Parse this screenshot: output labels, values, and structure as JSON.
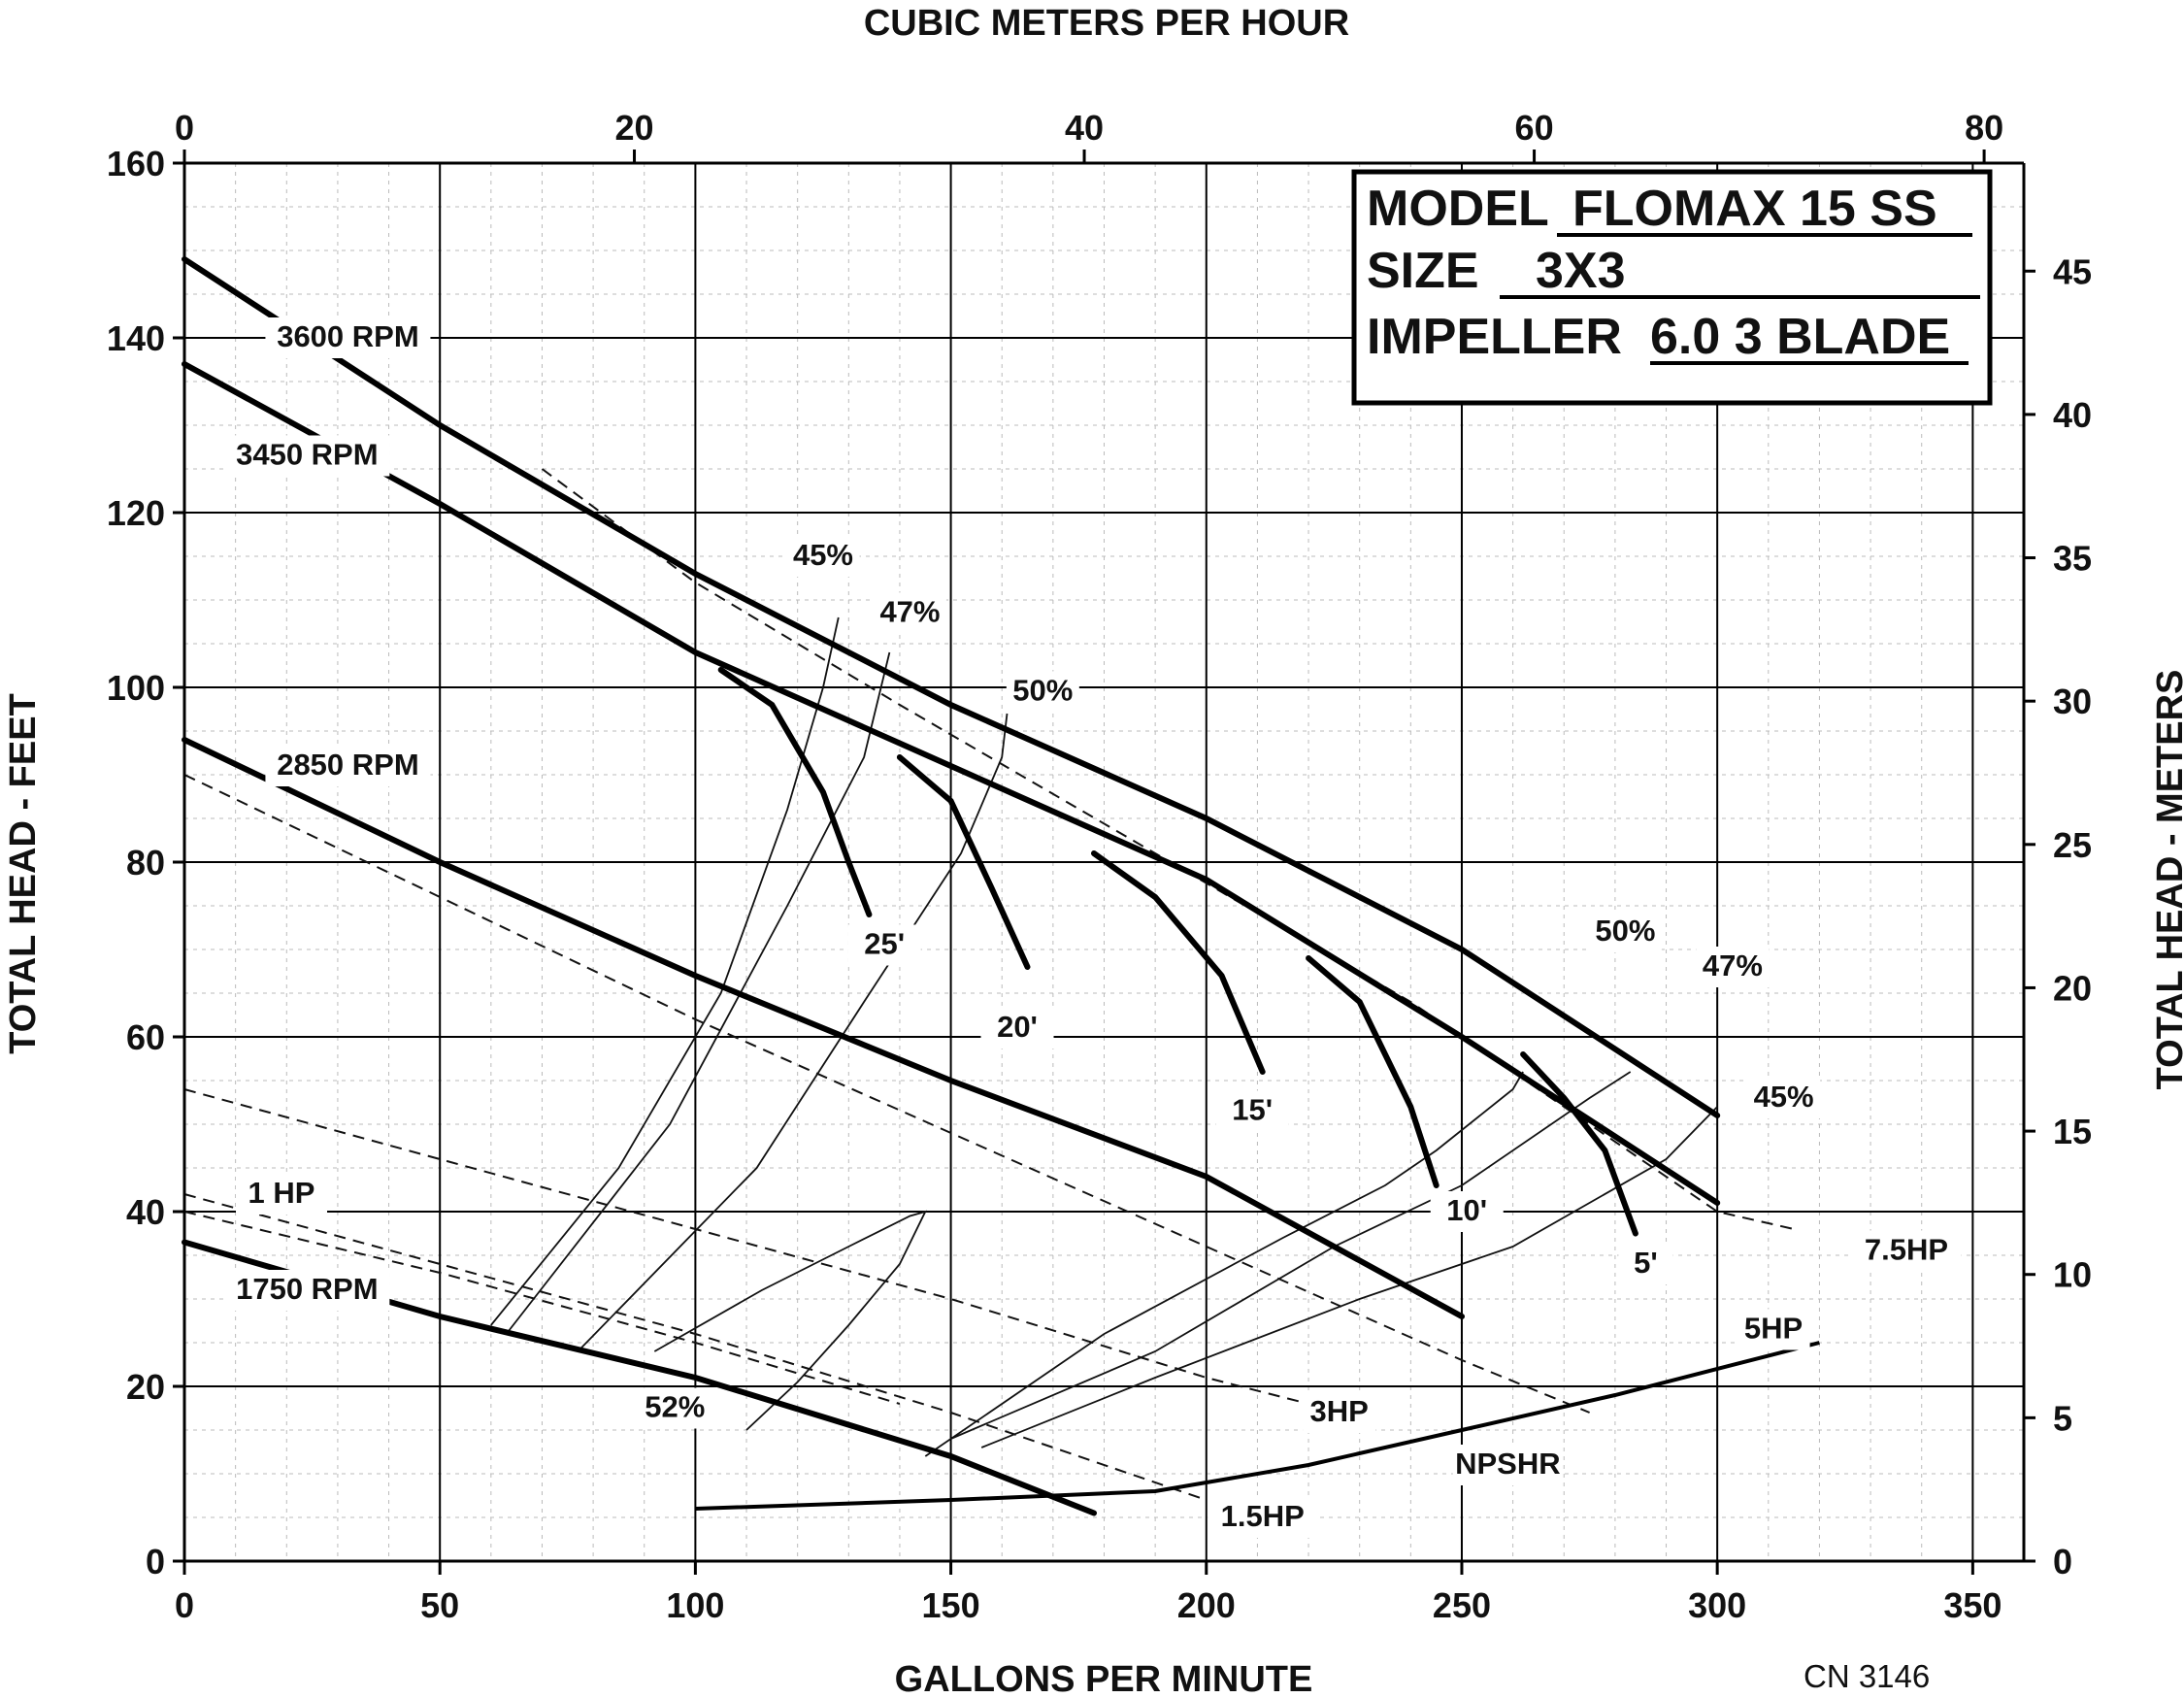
{
  "chart_data": {
    "type": "line",
    "title_box": {
      "line1_label": "MODEL",
      "line1_value": "FLOMAX 15 SS",
      "line2_label": "SIZE",
      "line2_value": "3X3",
      "line3_label": "IMPELLER",
      "line3_value": "6.0 3 BLADE"
    },
    "xlabel": "GALLONS PER MINUTE",
    "x2label": "CUBIC METERS PER HOUR",
    "ylabel": "TOTAL HEAD - FEET",
    "y2label": "TOTAL HEAD - METERS",
    "xlim": [
      0,
      360
    ],
    "ylim": [
      0,
      160
    ],
    "x_ticks": [
      "0",
      "50",
      "100",
      "150",
      "200",
      "250",
      "300",
      "350"
    ],
    "y_ticks": [
      "0",
      "20",
      "40",
      "60",
      "80",
      "100",
      "120",
      "140",
      "160"
    ],
    "x2_ticks": [
      "0",
      "20",
      "40",
      "60",
      "80"
    ],
    "y2_ticks": [
      "0",
      "5",
      "10",
      "15",
      "20",
      "25",
      "30",
      "35",
      "40",
      "45"
    ],
    "grid": true,
    "footnote": "CN 3146",
    "speed_curves": [
      {
        "name": "3600 RPM",
        "points": [
          [
            0,
            149
          ],
          [
            50,
            130
          ],
          [
            100,
            113
          ],
          [
            150,
            98
          ],
          [
            200,
            85
          ],
          [
            250,
            70
          ],
          [
            300,
            51
          ]
        ]
      },
      {
        "name": "3450 RPM",
        "points": [
          [
            0,
            137
          ],
          [
            50,
            121
          ],
          [
            100,
            104
          ],
          [
            150,
            91
          ],
          [
            200,
            78
          ],
          [
            250,
            60
          ],
          [
            300,
            41
          ]
        ]
      },
      {
        "name": "2850 RPM",
        "points": [
          [
            0,
            94
          ],
          [
            50,
            80
          ],
          [
            100,
            67
          ],
          [
            150,
            55
          ],
          [
            200,
            44
          ],
          [
            250,
            28
          ]
        ]
      },
      {
        "name": "1750 RPM",
        "points": [
          [
            0,
            36.5
          ],
          [
            50,
            28
          ],
          [
            100,
            21
          ],
          [
            150,
            12
          ],
          [
            178,
            5.5
          ]
        ]
      }
    ],
    "npsh_curves": [
      {
        "name": "25'",
        "points": [
          [
            105,
            102
          ],
          [
            115,
            98
          ],
          [
            125,
            88
          ],
          [
            130,
            80
          ],
          [
            134,
            74
          ]
        ]
      },
      {
        "name": "20'",
        "points": [
          [
            140,
            92
          ],
          [
            150,
            87
          ],
          [
            158,
            77
          ],
          [
            165,
            68
          ]
        ]
      },
      {
        "name": "15'",
        "points": [
          [
            178,
            81
          ],
          [
            190,
            76
          ],
          [
            203,
            67
          ],
          [
            211,
            56
          ]
        ]
      },
      {
        "name": "10'",
        "points": [
          [
            220,
            69
          ],
          [
            230,
            64
          ],
          [
            240,
            52
          ],
          [
            245,
            43
          ]
        ]
      },
      {
        "name": "5'",
        "points": [
          [
            262,
            58
          ],
          [
            270,
            53
          ],
          [
            278,
            47
          ],
          [
            284,
            37.5
          ]
        ]
      }
    ],
    "efficiency_curves": [
      {
        "name": "45%",
        "points": [
          [
            60,
            27
          ],
          [
            85,
            45
          ],
          [
            105,
            65
          ],
          [
            118,
            86
          ],
          [
            125,
            100
          ],
          [
            128,
            108
          ]
        ]
      },
      {
        "name": "47%",
        "points": [
          [
            63,
            26
          ],
          [
            95,
            50
          ],
          [
            118,
            75
          ],
          [
            133,
            92
          ],
          [
            138,
            104
          ]
        ]
      },
      {
        "name": "50%",
        "points": [
          [
            77,
            24
          ],
          [
            112,
            45
          ],
          [
            133,
            64
          ],
          [
            152,
            81
          ],
          [
            160,
            92
          ],
          [
            161,
            97
          ]
        ]
      },
      {
        "name": "52%",
        "points": [
          [
            92,
            24
          ],
          [
            113,
            31
          ],
          [
            130,
            36
          ],
          [
            142,
            39.5
          ],
          [
            145,
            40
          ],
          [
            140,
            34
          ],
          [
            130,
            27
          ],
          [
            120,
            20.5
          ],
          [
            110,
            15
          ]
        ]
      },
      {
        "name": "50%",
        "points": [
          [
            145,
            12
          ],
          [
            180,
            26
          ],
          [
            215,
            37
          ],
          [
            235,
            43
          ],
          [
            245,
            47
          ],
          [
            260,
            54
          ],
          [
            262,
            56
          ]
        ]
      },
      {
        "name": "47%",
        "points": [
          [
            150,
            14
          ],
          [
            190,
            24
          ],
          [
            225,
            36
          ],
          [
            250,
            43
          ],
          [
            275,
            53
          ],
          [
            283,
            56
          ]
        ]
      },
      {
        "name": "45%",
        "points": [
          [
            156,
            13
          ],
          [
            190,
            21
          ],
          [
            230,
            30
          ],
          [
            260,
            36
          ],
          [
            290,
            46
          ],
          [
            300,
            52
          ]
        ]
      }
    ],
    "power_lines": [
      {
        "name": "7.5HP",
        "points": [
          [
            70,
            125
          ],
          [
            100,
            112
          ],
          [
            140,
            98
          ],
          [
            190,
            81
          ],
          [
            240,
            64
          ],
          [
            300,
            40
          ],
          [
            315,
            38
          ]
        ]
      },
      {
        "name": "5HP",
        "points": [
          [
            0,
            90
          ],
          [
            50,
            76
          ],
          [
            100,
            62
          ],
          [
            150,
            49
          ],
          [
            200,
            36
          ],
          [
            250,
            23
          ],
          [
            275,
            17
          ]
        ]
      },
      {
        "name": "3HP",
        "points": [
          [
            0,
            54
          ],
          [
            50,
            46
          ],
          [
            100,
            38
          ],
          [
            150,
            30
          ],
          [
            200,
            21
          ],
          [
            220,
            18
          ]
        ]
      },
      {
        "name": "1.5HP",
        "points": [
          [
            0,
            42
          ],
          [
            50,
            34
          ],
          [
            100,
            26
          ],
          [
            150,
            17
          ],
          [
            200,
            7
          ]
        ]
      },
      {
        "name": "1 HP",
        "points": [
          [
            0,
            40
          ],
          [
            50,
            33
          ],
          [
            100,
            25
          ],
          [
            140,
            18
          ]
        ]
      }
    ],
    "npshr_curve": {
      "name": "NPSHR",
      "points": [
        [
          100,
          6
        ],
        [
          150,
          7
        ],
        [
          190,
          8
        ],
        [
          220,
          11
        ],
        [
          250,
          15
        ],
        [
          280,
          19
        ],
        [
          320,
          25
        ]
      ]
    },
    "x2_max": 80
  }
}
